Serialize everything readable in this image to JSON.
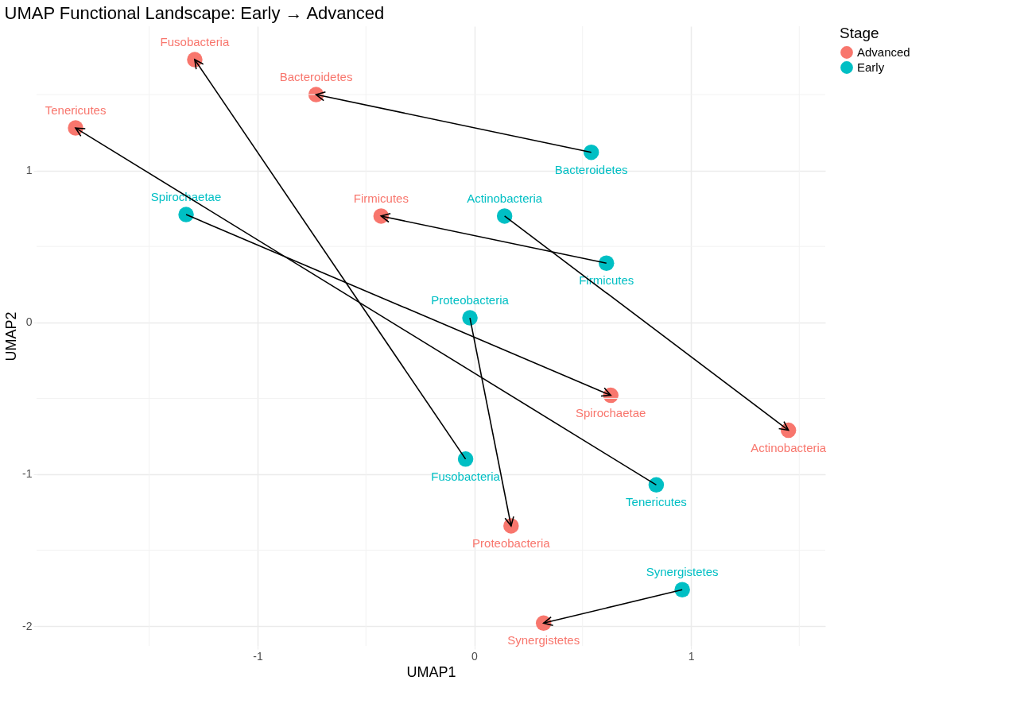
{
  "chart_data": {
    "type": "scatter",
    "title": "UMAP Functional Landscape: Early → Advanced",
    "xlabel": "UMAP1",
    "ylabel": "UMAP2",
    "legend_title": "Stage",
    "legend": "right",
    "grid": true,
    "marker": "circle",
    "series": [
      {
        "name": "Advanced",
        "color": "#f8766d",
        "x": [
          -1.29,
          -0.73,
          -1.84,
          -0.43,
          0.63,
          1.45,
          0.17,
          0.32
        ],
        "values": [
          1.73,
          1.5,
          1.28,
          0.7,
          -0.48,
          -0.71,
          -1.34,
          -1.98
        ]
      },
      {
        "name": "Early",
        "color": "#00bfc4",
        "x": [
          -0.04,
          0.54,
          0.84,
          0.61,
          -1.33,
          0.14,
          -0.02,
          0.96
        ],
        "values": [
          -0.9,
          1.12,
          -1.07,
          0.39,
          0.71,
          0.7,
          0.03,
          -1.76
        ]
      }
    ],
    "annotations": [
      {
        "text": "Fusobacteria",
        "x": -1.29,
        "y": 1.73
      },
      {
        "text": "Bacteroidetes",
        "x": -0.73,
        "y": 1.5
      },
      {
        "text": "Tenericutes",
        "x": -1.84,
        "y": 1.28
      },
      {
        "text": "Firmicutes",
        "x": -0.43,
        "y": 0.7
      },
      {
        "text": "Spirochaetae",
        "x": 0.63,
        "y": -0.48
      },
      {
        "text": "Actinobacteria",
        "x": 1.45,
        "y": -0.71
      },
      {
        "text": "Proteobacteria",
        "x": 0.17,
        "y": -1.34
      },
      {
        "text": "Synergistetes",
        "x": 0.32,
        "y": -1.98
      },
      {
        "text": "Fusobacteria",
        "x": -0.04,
        "y": -0.9
      },
      {
        "text": "Bacteroidetes",
        "x": 0.54,
        "y": 1.12
      },
      {
        "text": "Tenericutes",
        "x": 0.84,
        "y": -1.07
      },
      {
        "text": "Firmicutes",
        "x": 0.61,
        "y": 0.39
      },
      {
        "text": "Spirochaetae",
        "x": -1.33,
        "y": 0.71
      },
      {
        "text": "Actinobacteria",
        "x": 0.14,
        "y": 0.7
      },
      {
        "text": "Proteobacteria",
        "x": -0.02,
        "y": 0.03
      },
      {
        "text": "Synergistetes",
        "x": 0.96,
        "y": -1.76
      }
    ],
    "xlim": [
      -2.02,
      1.62
    ],
    "ylim": [
      -2.13,
      1.95
    ],
    "xticks": [
      {
        "value": -1.5,
        "label": null
      },
      -1,
      {
        "value": -0.5,
        "label": null
      },
      0,
      {
        "value": 0.5,
        "label": null
      },
      1,
      {
        "value": 1.5,
        "label": null
      }
    ],
    "yticks": [
      -2,
      {
        "value": -1.5,
        "label": null
      },
      -1,
      {
        "value": -0.5,
        "label": null
      },
      0,
      {
        "value": 0.5,
        "label": null
      },
      1,
      {
        "value": 1.5,
        "label": null
      }
    ]
  }
}
